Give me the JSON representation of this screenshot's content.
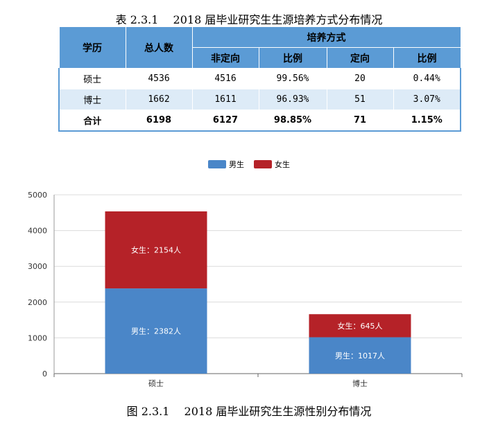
{
  "table": {
    "title": "表 2.3.1　 2018 届毕业研究生生源培养方式分布情况",
    "headers": {
      "degree": "学历",
      "total": "总人数",
      "group": "培养方式",
      "non_directed": "非定向",
      "ratio1": "比例",
      "directed": "定向",
      "ratio2": "比例"
    },
    "rows": [
      {
        "degree": "硕士",
        "total": "4536",
        "non_directed": "4516",
        "ratio1": "99.56%",
        "directed": "20",
        "ratio2": "0.44%"
      },
      {
        "degree": "博士",
        "total": "1662",
        "non_directed": "1611",
        "ratio1": "96.93%",
        "directed": "51",
        "ratio2": "3.07%"
      },
      {
        "degree": "合计",
        "total": "6198",
        "non_directed": "6127",
        "ratio1": "98.85%",
        "directed": "71",
        "ratio2": "1.15%"
      }
    ]
  },
  "chart_data": {
    "type": "bar",
    "stacked": true,
    "categories": [
      "硕士",
      "博士"
    ],
    "series": [
      {
        "name": "男生",
        "values": [
          2382,
          1017
        ],
        "color": "#4a86c8",
        "labels": [
          "男生：2382人",
          "男生：1017人"
        ]
      },
      {
        "name": "女生",
        "values": [
          2154,
          645
        ],
        "color": "#b52228",
        "labels": [
          "女生：2154人",
          "女生：645人"
        ]
      }
    ],
    "ylim": [
      0,
      5000
    ],
    "yticks": [
      "0",
      "1000",
      "2000",
      "3000",
      "4000",
      "5000"
    ],
    "legend_position": "top-center",
    "grid": true,
    "caption": "图 2.3.1　 2018 届毕业研究生生源性别分布情况"
  },
  "colors": {
    "header_bg": "#5b9bd5",
    "stripe_bg": "#ddebf7",
    "male": "#4a86c8",
    "female": "#b52228"
  }
}
